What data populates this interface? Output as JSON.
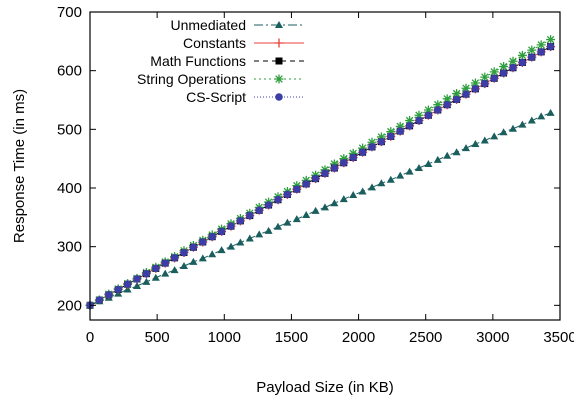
{
  "chart_data": {
    "type": "line",
    "xlabel": "Payload Size (in KB)",
    "ylabel": "Response Time (in ms)",
    "xlim": [
      0,
      3500
    ],
    "ylim": [
      175,
      700
    ],
    "xticks": [
      0,
      500,
      1000,
      1500,
      2000,
      2500,
      3000,
      3500
    ],
    "yticks": [
      200,
      300,
      400,
      500,
      600,
      700
    ],
    "grid": false,
    "legend_position": "top-left",
    "x": [
      0,
      70,
      140,
      210,
      280,
      350,
      420,
      490,
      560,
      630,
      700,
      770,
      840,
      910,
      980,
      1050,
      1120,
      1190,
      1260,
      1330,
      1400,
      1470,
      1540,
      1610,
      1680,
      1750,
      1820,
      1890,
      1960,
      2030,
      2100,
      2170,
      2240,
      2310,
      2380,
      2450,
      2520,
      2590,
      2660,
      2730,
      2800,
      2870,
      2940,
      3010,
      3080,
      3150,
      3220,
      3290,
      3360,
      3430
    ],
    "series": [
      {
        "name": "Unmediated",
        "color": "#1a5e5e",
        "marker": "triangle",
        "dash": "9,3,2,3",
        "values": [
          200,
          207,
          213,
          220,
          227,
          233,
          240,
          247,
          254,
          260,
          267,
          274,
          280,
          287,
          294,
          300,
          307,
          314,
          321,
          327,
          334,
          341,
          347,
          354,
          361,
          367,
          374,
          381,
          388,
          394,
          401,
          408,
          414,
          421,
          428,
          434,
          441,
          448,
          455,
          461,
          468,
          475,
          481,
          488,
          495,
          501,
          508,
          515,
          522,
          528
        ]
      },
      {
        "name": "Constants",
        "color": "#e8403a",
        "marker": "plus",
        "dash": "",
        "values": [
          200,
          209,
          218,
          227,
          236,
          245,
          254,
          263,
          272,
          281,
          290,
          299,
          308,
          317,
          326,
          335,
          344,
          353,
          362,
          371,
          380,
          389,
          398,
          407,
          416,
          425,
          434,
          443,
          452,
          461,
          470,
          479,
          488,
          497,
          506,
          515,
          524,
          533,
          542,
          551,
          560,
          569,
          578,
          587,
          596,
          605,
          614,
          623,
          632,
          641
        ]
      },
      {
        "name": "Math Functions",
        "color": "#000000",
        "marker": "square",
        "dash": "5,4",
        "values": [
          200,
          209,
          218,
          227,
          236,
          245,
          254,
          263,
          272,
          281,
          290,
          299,
          308,
          317,
          326,
          335,
          344,
          353,
          362,
          371,
          380,
          389,
          398,
          407,
          416,
          425,
          434,
          443,
          452,
          461,
          470,
          479,
          488,
          497,
          506,
          515,
          524,
          533,
          542,
          551,
          560,
          569,
          578,
          587,
          596,
          605,
          614,
          623,
          632,
          641
        ]
      },
      {
        "name": "String Operations",
        "color": "#2e9e3e",
        "marker": "star",
        "dash": "2,3",
        "values": [
          200,
          209,
          219,
          228,
          237,
          246,
          256,
          265,
          274,
          283,
          293,
          302,
          311,
          320,
          330,
          339,
          348,
          357,
          367,
          376,
          385,
          394,
          404,
          413,
          422,
          431,
          441,
          450,
          459,
          468,
          478,
          487,
          496,
          505,
          515,
          524,
          533,
          542,
          552,
          561,
          570,
          579,
          589,
          598,
          607,
          616,
          626,
          635,
          644,
          653
        ]
      },
      {
        "name": "CS-Script",
        "color": "#3d3da8",
        "marker": "circle",
        "dash": "1,2",
        "values": [
          200,
          209,
          218,
          227,
          236,
          245,
          254,
          263,
          272,
          281,
          290,
          299,
          308,
          317,
          326,
          335,
          344,
          353,
          362,
          371,
          380,
          389,
          398,
          407,
          416,
          425,
          434,
          443,
          452,
          461,
          470,
          479,
          488,
          497,
          506,
          515,
          524,
          533,
          542,
          551,
          560,
          569,
          578,
          587,
          596,
          605,
          614,
          623,
          632,
          641
        ]
      }
    ]
  }
}
